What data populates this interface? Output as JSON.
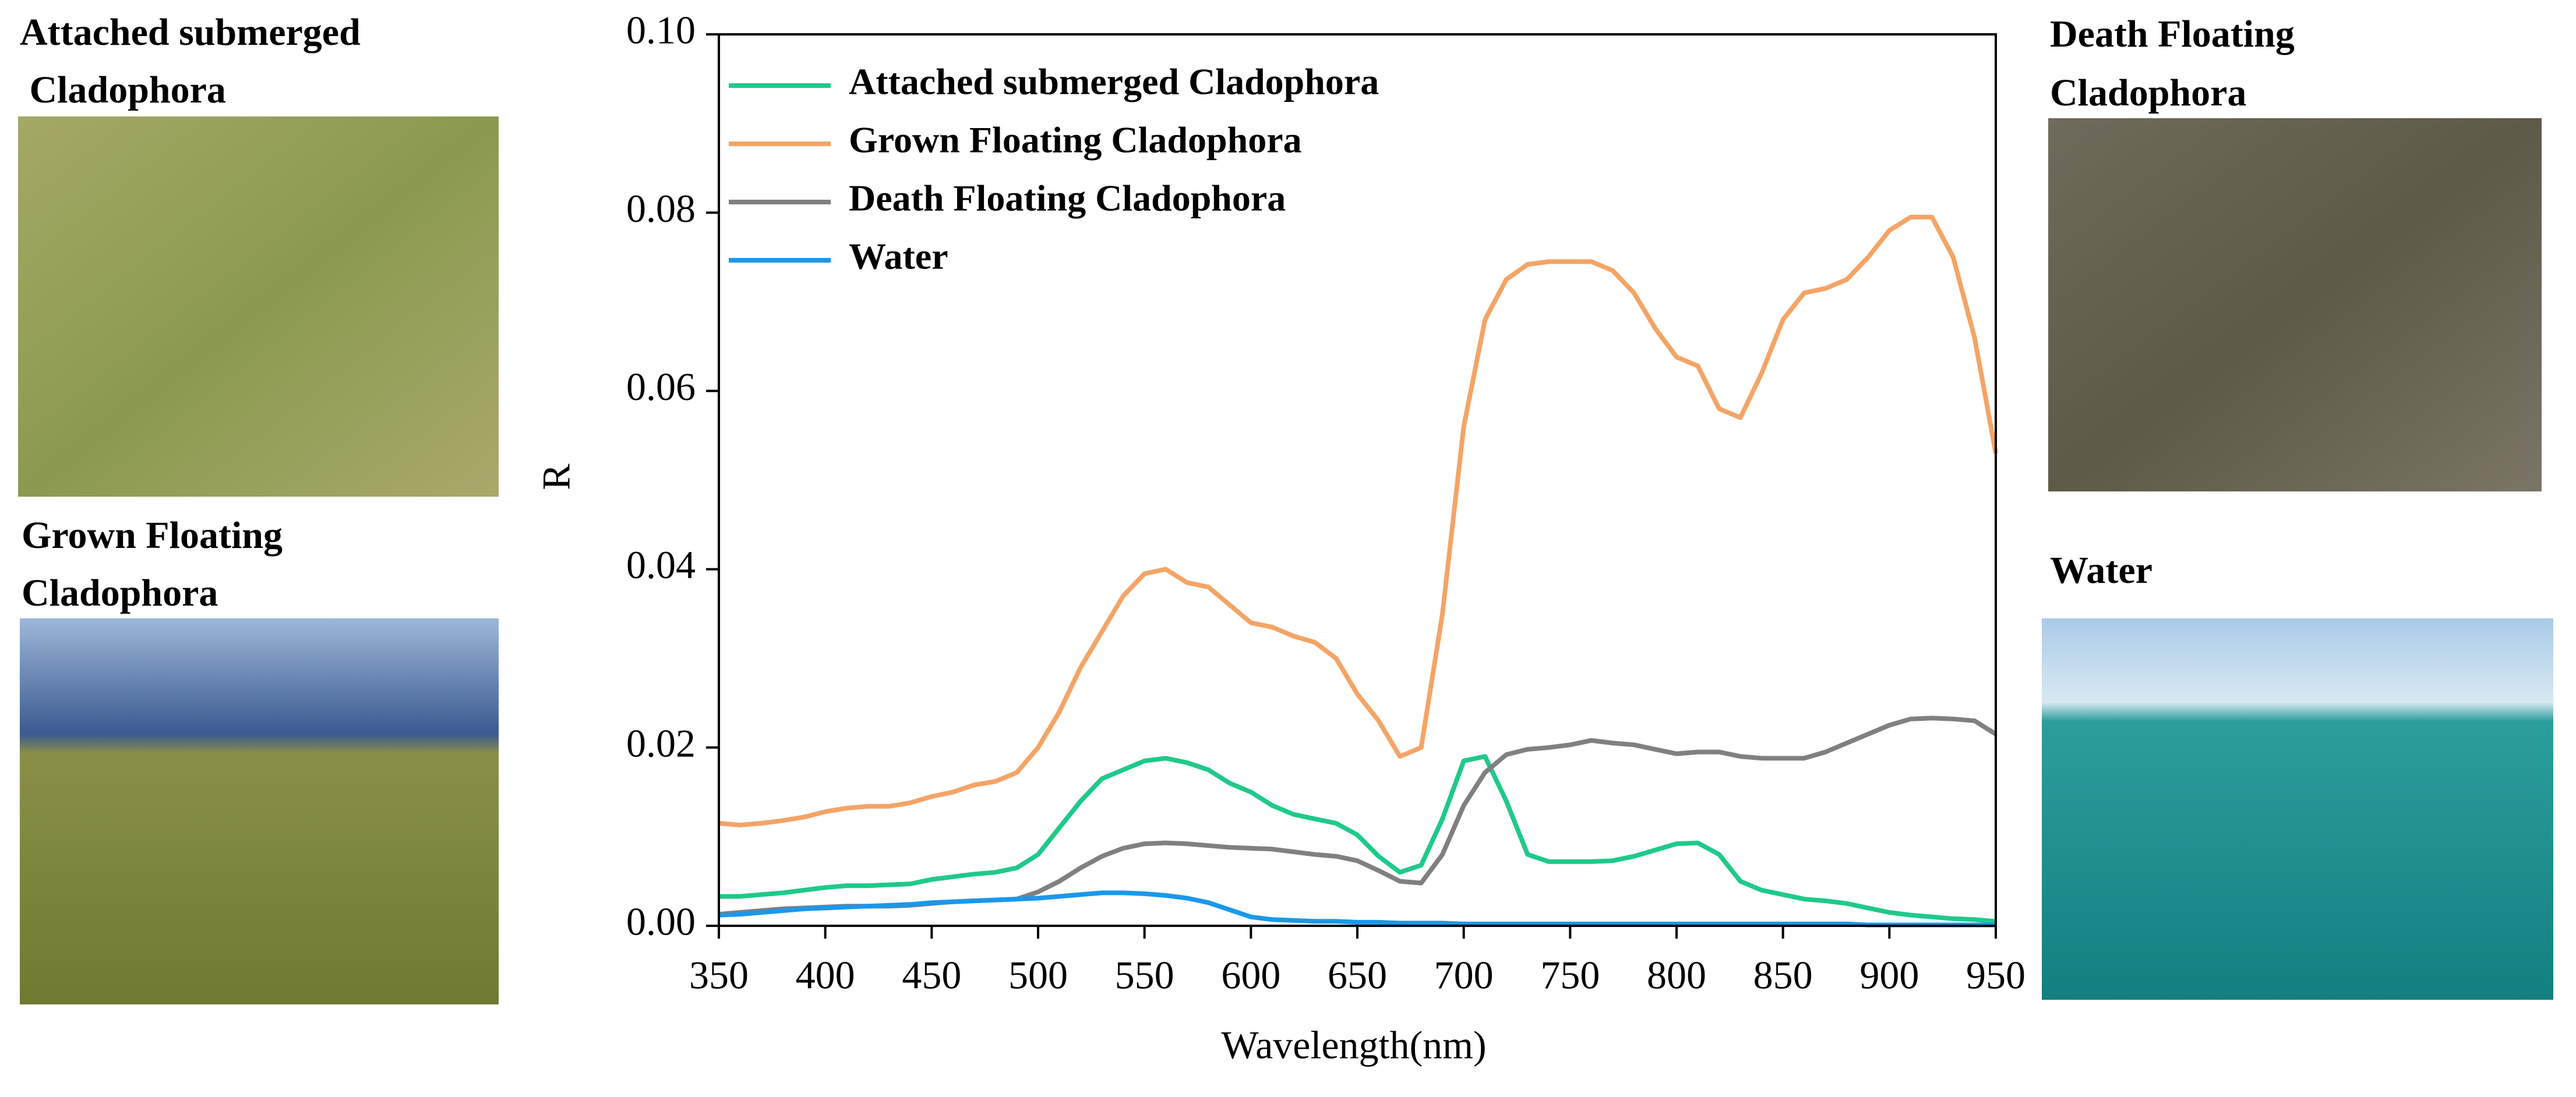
{
  "chart_data": {
    "type": "line",
    "x_label": "Wavelength(nm)",
    "y_label": "R",
    "x": [
      350,
      360,
      370,
      380,
      390,
      400,
      410,
      420,
      430,
      440,
      450,
      460,
      470,
      480,
      490,
      500,
      510,
      520,
      530,
      540,
      550,
      560,
      570,
      580,
      590,
      600,
      610,
      620,
      630,
      640,
      650,
      660,
      670,
      680,
      690,
      700,
      710,
      720,
      730,
      740,
      750,
      760,
      770,
      780,
      790,
      800,
      810,
      820,
      830,
      840,
      850,
      860,
      870,
      880,
      890,
      900,
      910,
      920,
      930,
      940,
      950
    ],
    "series": [
      {
        "name": "Attached submerged Cladophora",
        "color": "#1fc98a",
        "values": [
          0.0033,
          0.0033,
          0.0035,
          0.0037,
          0.004,
          0.0043,
          0.0045,
          0.0045,
          0.0046,
          0.0047,
          0.0052,
          0.0055,
          0.0058,
          0.006,
          0.0065,
          0.008,
          0.011,
          0.014,
          0.0165,
          0.0175,
          0.0185,
          0.0188,
          0.0183,
          0.0175,
          0.016,
          0.015,
          0.0135,
          0.0125,
          0.012,
          0.0115,
          0.0102,
          0.0078,
          0.006,
          0.0068,
          0.012,
          0.0185,
          0.019,
          0.014,
          0.008,
          0.0072,
          0.0072,
          0.0072,
          0.0073,
          0.0078,
          0.0085,
          0.0092,
          0.0093,
          0.008,
          0.005,
          0.004,
          0.0035,
          0.003,
          0.0028,
          0.0025,
          0.002,
          0.0015,
          0.0012,
          0.001,
          0.0008,
          0.0007,
          0.0005
        ]
      },
      {
        "name": "Grown Floating Cladophora",
        "color": "#f4a466",
        "values": [
          0.0115,
          0.0113,
          0.0115,
          0.0118,
          0.0122,
          0.0128,
          0.0132,
          0.0134,
          0.0134,
          0.0138,
          0.0145,
          0.015,
          0.0158,
          0.0162,
          0.0172,
          0.02,
          0.024,
          0.029,
          0.033,
          0.037,
          0.0395,
          0.04,
          0.0385,
          0.038,
          0.036,
          0.034,
          0.0335,
          0.0325,
          0.0318,
          0.03,
          0.026,
          0.023,
          0.019,
          0.02,
          0.035,
          0.056,
          0.068,
          0.0725,
          0.0742,
          0.0745,
          0.0745,
          0.0745,
          0.0735,
          0.071,
          0.067,
          0.0638,
          0.0628,
          0.058,
          0.057,
          0.062,
          0.068,
          0.071,
          0.0715,
          0.0725,
          0.075,
          0.078,
          0.0795,
          0.0795,
          0.075,
          0.066,
          0.053
        ]
      },
      {
        "name": "Death Floating Cladophora",
        "color": "#808080",
        "values": [
          0.0013,
          0.0015,
          0.0017,
          0.0019,
          0.002,
          0.0021,
          0.0022,
          0.0022,
          0.0022,
          0.0023,
          0.0025,
          0.0027,
          0.0028,
          0.0029,
          0.003,
          0.0038,
          0.005,
          0.0065,
          0.0078,
          0.0087,
          0.0092,
          0.0093,
          0.0092,
          0.009,
          0.0088,
          0.0087,
          0.0086,
          0.0083,
          0.008,
          0.0078,
          0.0073,
          0.0062,
          0.005,
          0.0048,
          0.008,
          0.0135,
          0.0172,
          0.0192,
          0.0198,
          0.02,
          0.0203,
          0.0208,
          0.0205,
          0.0203,
          0.0198,
          0.0193,
          0.0195,
          0.0195,
          0.019,
          0.0188,
          0.0188,
          0.0188,
          0.0195,
          0.0205,
          0.0215,
          0.0225,
          0.0232,
          0.0233,
          0.0232,
          0.023,
          0.0215
        ]
      },
      {
        "name": "Water",
        "color": "#1a98ea",
        "values": [
          0.0012,
          0.0013,
          0.0015,
          0.0017,
          0.0019,
          0.002,
          0.0021,
          0.0022,
          0.0023,
          0.0024,
          0.0026,
          0.0027,
          0.0028,
          0.0029,
          0.003,
          0.0031,
          0.0033,
          0.0035,
          0.0037,
          0.0037,
          0.0036,
          0.0034,
          0.0031,
          0.0026,
          0.0018,
          0.001,
          0.0007,
          0.0006,
          0.0005,
          0.0005,
          0.0004,
          0.0004,
          0.0003,
          0.0003,
          0.0003,
          0.0002,
          0.0002,
          0.0002,
          0.0002,
          0.0002,
          0.0002,
          0.0002,
          0.0002,
          0.0002,
          0.0002,
          0.0002,
          0.0002,
          0.0002,
          0.0002,
          0.0002,
          0.0002,
          0.0002,
          0.0002,
          0.0002,
          0.0001,
          0.0001,
          0.0001,
          0.0001,
          0.0001,
          0.0001,
          0.0001
        ]
      }
    ],
    "xlim": [
      350,
      950
    ],
    "xticks": [
      350,
      400,
      450,
      500,
      550,
      600,
      650,
      700,
      750,
      800,
      850,
      900,
      950
    ],
    "ylim": [
      0,
      0.1
    ],
    "yticks": [
      {
        "value": 0,
        "label": "0.00"
      },
      {
        "value": 0.02,
        "label": "0.02"
      },
      {
        "value": 0.04,
        "label": "0.04"
      },
      {
        "value": 0.06,
        "label": "0.06"
      },
      {
        "value": 0.08,
        "label": "0.08"
      },
      {
        "value": 0.1,
        "label": "0.10"
      }
    ],
    "grid": false,
    "legend": "upper left"
  },
  "photo_labels": [
    [
      "Attached  submerged",
      " Cladophora"
    ],
    [
      "Grown Floating",
      "Cladophora"
    ],
    [
      "Death Floating",
      "Cladophora"
    ],
    [
      "Water"
    ]
  ]
}
